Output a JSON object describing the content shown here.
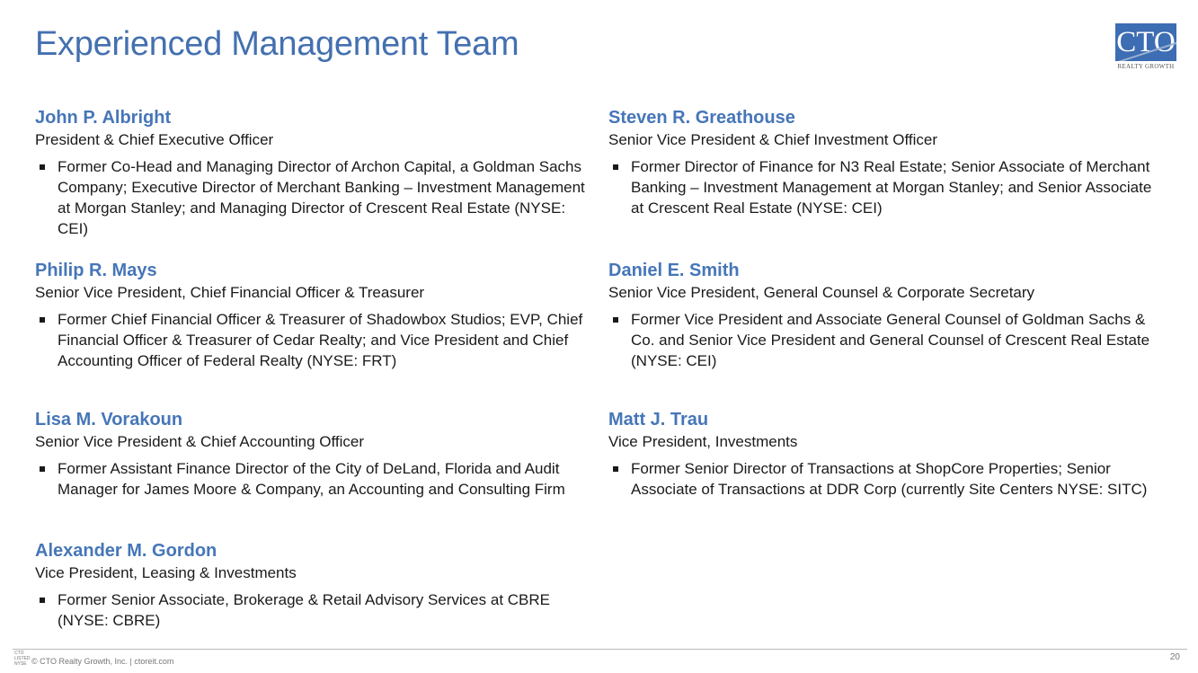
{
  "title": "Experienced Management Team",
  "logo": {
    "text": "CTO",
    "sub": "REALTY GROWTH"
  },
  "left": [
    {
      "name": "John P. Albright",
      "role": "President & Chief Executive Officer",
      "bullet": "Former Co-Head and Managing Director of Archon Capital, a Goldman Sachs Company; Executive Director of Merchant Banking – Investment Management at Morgan Stanley; and Managing Director of Crescent Real Estate (NYSE: CEI)"
    },
    {
      "name": "Philip R. Mays",
      "role": "Senior Vice President,  Chief Financial Officer & Treasurer",
      "bullet": "Former Chief Financial Officer & Treasurer of Shadowbox Studios; EVP, Chief Financial Officer & Treasurer of Cedar Realty; and Vice President and Chief Accounting Officer of Federal Realty (NYSE: FRT)"
    },
    {
      "name": "Lisa M. Vorakoun",
      "role": "Senior Vice President & Chief Accounting Officer",
      "bullet": "Former Assistant Finance Director of the City of DeLand, Florida and Audit Manager for James Moore & Company, an Accounting and Consulting Firm"
    },
    {
      "name": "Alexander M. Gordon",
      "role": "Vice President, Leasing & Investments",
      "bullet": "Former Senior Associate, Brokerage & Retail Advisory Services at CBRE (NYSE: CBRE)"
    }
  ],
  "right": [
    {
      "name": "Steven R. Greathouse",
      "role": "Senior Vice President & Chief Investment Officer",
      "bullet": "Former Director of Finance for N3 Real Estate; Senior Associate of Merchant Banking – Investment Management at Morgan Stanley; and Senior Associate at Crescent Real Estate (NYSE: CEI)"
    },
    {
      "name": "Daniel E. Smith",
      "role": "Senior Vice President, General Counsel & Corporate Secretary",
      "bullet": "Former Vice President and Associate General Counsel of Goldman Sachs & Co. and Senior Vice President and General Counsel of Crescent Real Estate (NYSE: CEI)"
    },
    {
      "name": "Matt J. Trau",
      "role": "Vice President,  Investments",
      "bullet": "Former Senior Director of Transactions at ShopCore Properties; Senior Associate of Transactions at DDR Corp (currently Site Centers NYSE: SITC)"
    }
  ],
  "footer": {
    "logo_top": "CTO",
    "logo_mid": "LISTED",
    "logo_bottom": "NYSE",
    "text": "© CTO Realty Growth, Inc. | ctoreit.com",
    "page": "20"
  }
}
